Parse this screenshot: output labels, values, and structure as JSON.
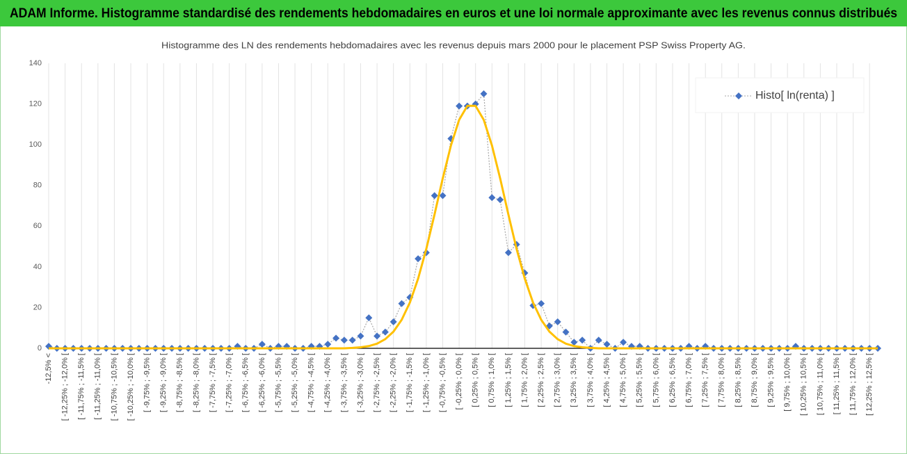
{
  "header": {
    "title": "ADAM Informe. Histogramme standardisé des rendements hebdomadaires en euros et une loi normale approximante avec les revenus connus distribués"
  },
  "chart_data": {
    "type": "line",
    "title": "Histogramme des LN des rendements hebdomadaires avec les revenus depuis mars 2000 pour le placement PSP Swiss Property AG.",
    "categories": [
      "-12,5% <",
      null,
      "[ -12,25% ; -12,0% [",
      null,
      "[ -11,75% ; -11,5% [",
      null,
      "[ -11,25% ; -11,0% [",
      null,
      "[ -10,75% ; -10,5% [",
      null,
      "[ -10,25% ; -10,0% [",
      null,
      "[ -9,75% ; -9,5% [",
      null,
      "[ -9,25% ; -9,0% [",
      null,
      "[ -8,75% ; -8,5% [",
      null,
      "[ -8,25% ; -8,0% [",
      null,
      "[ -7,75% ; -7,5% [",
      null,
      "[ -7,25% ; -7,0% [",
      null,
      "[ -6,75% ; -6,5% [",
      null,
      "[ -6,25% ; -6,0% [",
      null,
      "[ -5,75% ; -5,5% [",
      null,
      "[ -5,25% ; -5,0% [",
      null,
      "[ -4,75% ; -4,5% [",
      null,
      "[ -4,25% ; -4,0% [",
      null,
      "[ -3,75% ; -3,5% [",
      null,
      "[ -3,25% ; -3,0% [",
      null,
      "[ -2,75% ; -2,5% [",
      null,
      "[ -2,25% ; -2,0% [",
      null,
      "[ -1,75% ; -1,5% [",
      null,
      "[ -1,25% ; -1,0% [",
      null,
      "[ -0,75% ; -0,5% [",
      null,
      "[ -0,25% ; 0,0% [",
      null,
      "[ 0,25% ; 0,5% [",
      null,
      "[ 0,75% ; 1,0% [",
      null,
      "[ 1,25% ; 1,5% [",
      null,
      "[ 1,75% ; 2,0% [",
      null,
      "[ 2,25% ; 2,5% [",
      null,
      "[ 2,75% ; 3,0% [",
      null,
      "[ 3,25% ; 3,5% [",
      null,
      "[ 3,75% ; 4,0% [",
      null,
      "[ 4,25% ; 4,5% [",
      null,
      "[ 4,75% ; 5,0% [",
      null,
      "[ 5,25% ; 5,5% [",
      null,
      "[ 5,75% ; 6,0% [",
      null,
      "[ 6,25% ; 6,5% [",
      null,
      "[ 6,75% ; 7,0% [",
      null,
      "[ 7,25% ; 7,5% [",
      null,
      "[ 7,75% ; 8,0% [",
      null,
      "[ 8,25% ; 8,5% [",
      null,
      "[ 8,75% ; 9,0% [",
      null,
      "[ 9,25% ; 9,5% [",
      null,
      "[ 9,75% ; 10,0% [",
      null,
      "[ 10,25% ; 10,5% [",
      null,
      "[ 10,75% ; 11,0% [",
      null,
      "[ 11,25% ; 11,5% [",
      null,
      "[ 11,75% ; 12,0% [",
      null,
      "[ 12,25% ; 12,5% [",
      null
    ],
    "series": [
      {
        "name": "Histo[ ln(renta) ]",
        "color": "#4472c4",
        "marker": "diamond",
        "line": "dotted",
        "values": [
          1,
          0,
          0,
          0,
          0,
          0,
          0,
          0,
          0,
          0,
          0,
          0,
          0,
          0,
          0,
          0,
          0,
          0,
          0,
          0,
          0,
          0,
          0,
          1,
          0,
          0,
          2,
          0,
          1,
          1,
          0,
          0,
          1,
          1,
          2,
          5,
          4,
          4,
          6,
          15,
          6,
          8,
          13,
          22,
          25,
          44,
          47,
          75,
          75,
          103,
          119,
          119,
          120,
          125,
          74,
          73,
          47,
          51,
          37,
          21,
          22,
          11,
          13,
          8,
          3,
          4,
          0,
          4,
          2,
          0,
          3,
          1,
          1,
          0,
          0,
          0,
          0,
          0,
          1,
          0,
          1,
          0,
          0,
          0,
          0,
          0,
          0,
          0,
          0,
          0,
          0,
          1,
          0,
          0,
          0,
          0,
          0,
          0,
          0,
          0,
          0,
          0
        ]
      },
      {
        "color": "#ffc000",
        "marker": "none",
        "line": "solid",
        "values": [
          0,
          0,
          0,
          0,
          0,
          0,
          0,
          0,
          0,
          0,
          0,
          0,
          0,
          0,
          0,
          0,
          0,
          0,
          0,
          0,
          0,
          0,
          0,
          0,
          0,
          0,
          0,
          0,
          0,
          0,
          0,
          0,
          0,
          0,
          0,
          0,
          0,
          0.2,
          0.5,
          1.1,
          2.3,
          4.5,
          8.2,
          14.0,
          22.5,
          34.2,
          48.8,
          65.7,
          83.4,
          99.6,
          112.2,
          119.1,
          119.1,
          112.2,
          99.6,
          83.4,
          65.7,
          48.8,
          34.2,
          22.5,
          14.0,
          8.2,
          4.5,
          2.3,
          1.1,
          0.5,
          0.2,
          0,
          0,
          0,
          0,
          0,
          0,
          0,
          0,
          0,
          0,
          0,
          0,
          0,
          0,
          0,
          0,
          0,
          0,
          0,
          0,
          0,
          0,
          0,
          0,
          0,
          0,
          0,
          0,
          0,
          0,
          0,
          0,
          0,
          0,
          0
        ]
      }
    ],
    "ylim": [
      0,
      140
    ],
    "yticks": [
      0,
      20,
      40,
      60,
      80,
      100,
      120,
      140
    ],
    "grid": "x",
    "legend": "upper right"
  }
}
